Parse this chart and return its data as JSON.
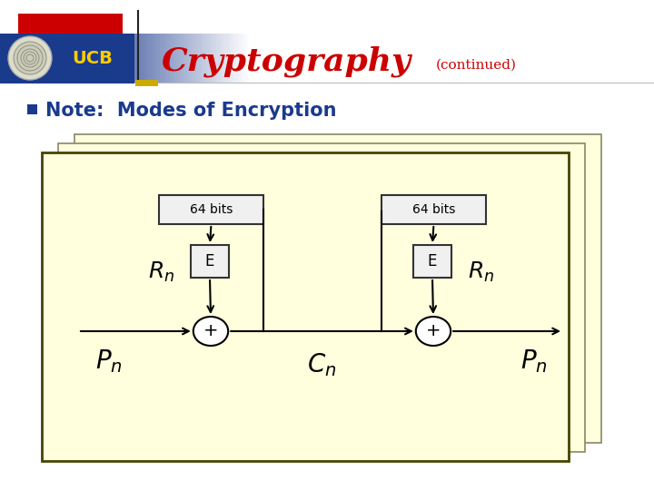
{
  "bg_color": "#ffffff",
  "title_main": "Cryptography",
  "title_continued": "(continued)",
  "title_main_color": "#cc0000",
  "title_continued_color": "#cc0000",
  "ucb_bg_color": "#1a3a8c",
  "ucb_text_color": "#ffcc00",
  "bullet_text": "Note:  Modes of Encryption",
  "bullet_color": "#1a3a8c",
  "bullet_square_color": "#1a3a8c",
  "box_fill": "#ffffdd",
  "box_border": "#888866",
  "diagram_fill": "#ffffdd",
  "diagram_border": "#444400",
  "rect_fill": "#f0f0f0",
  "rect_border": "#333333",
  "circle_fill": "#ffffff",
  "circle_border": "#000000",
  "arrow_color": "#000000",
  "text_color": "#000000",
  "header_red": "#cc0000",
  "header_line_color": "#888888",
  "yellow_accent": "#ccaa00"
}
